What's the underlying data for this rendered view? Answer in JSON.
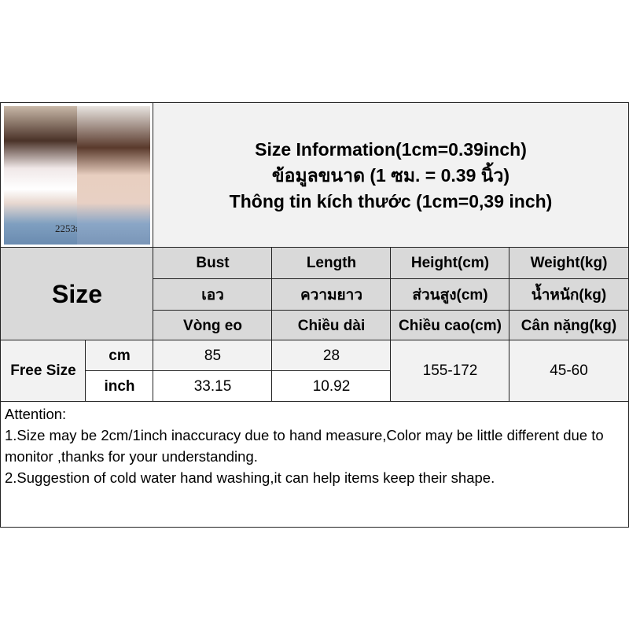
{
  "photo": {
    "label": "2253#"
  },
  "title": [
    "Size Information(1cm=0.39inch)",
    "ข้อมูลขนาด (1 ซม. = 0.39 นิ้ว)",
    "Thông tin kích thước (1cm=0,39 inch)"
  ],
  "size_label": "Size",
  "headers": [
    [
      "Bust",
      "Length",
      "Height(cm)",
      "Weight(kg)"
    ],
    [
      "เอว",
      "ความยาว",
      "ส่วนสูง(cm)",
      "น้ำหนัก(kg)"
    ],
    [
      "Vòng eo",
      "Chiều dài",
      "Chiều cao(cm)",
      "Cân nặng(kg)"
    ]
  ],
  "rows": {
    "size": "Free Size",
    "cm": {
      "unit": "cm",
      "bust": "85",
      "length": "28"
    },
    "inch": {
      "unit": "inch",
      "bust": "33.15",
      "length": "10.92"
    },
    "height": "155-172",
    "weight": "45-60"
  },
  "attention": [
    "Attention:",
    "1.Size may be 2cm/1inch inaccuracy due to hand measure,Color may be little different due to monitor ,thanks for your understanding.",
    "2.Suggestion of cold water hand washing,it can help items keep their shape."
  ]
}
